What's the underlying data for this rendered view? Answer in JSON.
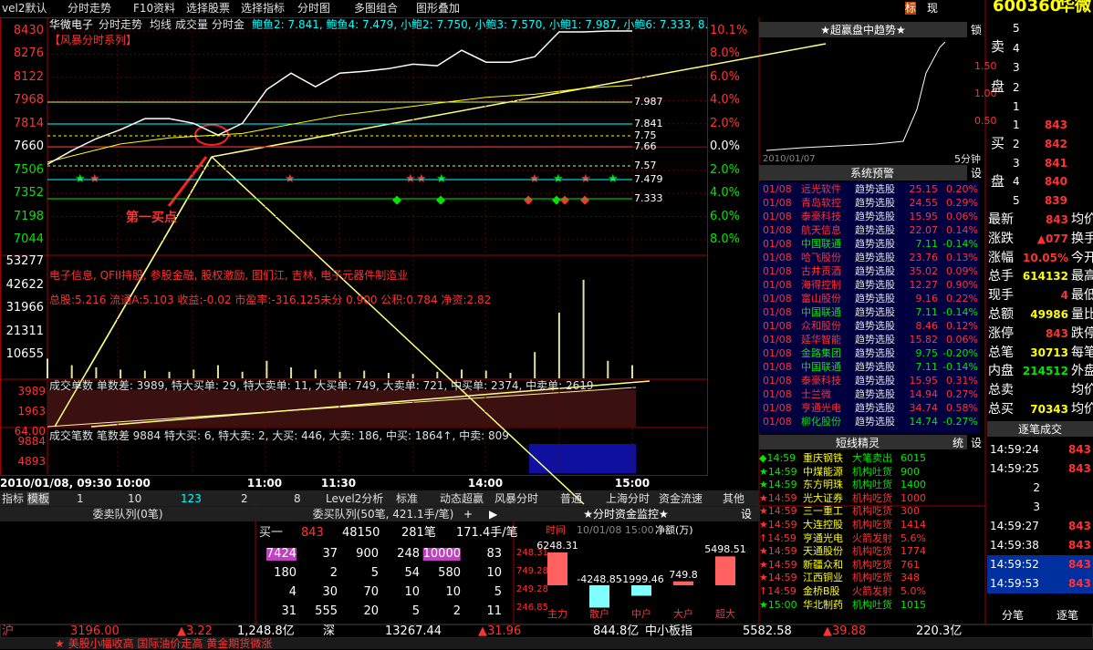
{
  "menu": {
    "tabs": [
      "vel2默认",
      "分时走势",
      "F10资料",
      "选择股票",
      "选择指标",
      "分时图",
      "多图组合",
      "图形叠加"
    ],
    "flags": [
      "标",
      "现"
    ],
    "code": "600360",
    "name": "华微"
  },
  "chart": {
    "header": [
      "华微电子",
      "分时走势",
      "均线",
      "成交量",
      "分时金",
      "鲍鱼2: 7.841, 鲍鱼4: 7.479, 小鲍2: 7.750, 小鲍3: 7.570, 小鲍1: 7.987, 小鲍6: 7.333, 8."
    ],
    "series_label": "【风暴分时系列】",
    "price_ticks": [
      "8430",
      "8276",
      "8122",
      "7968",
      "7814",
      "7660",
      "7506",
      "7352",
      "7198",
      "7044"
    ],
    "pct_ticks": [
      "10.1%",
      "8.0%",
      "6.0%",
      "4.0%",
      "2.0%",
      "0.0%",
      "2.0%",
      "4.0%",
      "6.0%",
      "8.0%"
    ],
    "levels": [
      {
        "label": "7.987",
        "color": "#c8ff64"
      },
      {
        "label": "7.841",
        "color": "#00ffff"
      },
      {
        "label": "7.75",
        "color": "#ffff00"
      },
      {
        "label": "7.66",
        "color": "#ff3232"
      },
      {
        "label": "7.57",
        "color": "#c8ff64"
      },
      {
        "label": "7.479",
        "color": "#00ffff"
      },
      {
        "label": "7.333",
        "color": "#00e600"
      }
    ],
    "annotation": "第一买点",
    "concepts": "电子信息, QFII持股, 参股金融, 股权激励, 图们江, 吉林, 电子元器件制造业",
    "fundamentals": "总股:5.216 流通A:5.103 收益:-0.02 市盈率:-316.125未分 0.900 公积:0.784 净资:2.82",
    "volume_ticks": [
      "53277",
      "42622",
      "31966",
      "21311",
      "10655"
    ],
    "time_labels": [
      "2010/01/08, 09:30 10:00",
      "11:00",
      "11:30",
      "14:00",
      "15:00"
    ],
    "ylim": [
      7044,
      8430
    ],
    "price": [
      7545,
      7636,
      7715,
      7775,
      7848,
      7848,
      7817,
      7739,
      7817,
      8041,
      8150,
      8060,
      8150,
      8162,
      8180,
      8210,
      8199,
      8302,
      8223,
      8223,
      8259,
      8424,
      8424,
      8430,
      8430
    ],
    "price_color": "#ffffff",
    "avg": [
      7560,
      7600,
      7640,
      7680,
      7700,
      7720,
      7730,
      7740,
      7750,
      7780,
      7810,
      7840,
      7870,
      7890,
      7910,
      7930,
      7950,
      7970,
      7990,
      8000,
      8010,
      8030,
      8050,
      8060,
      8070
    ],
    "avg_color": "#ffff00",
    "volume": [
      9000,
      6000,
      5000,
      4000,
      3500,
      3000,
      4000,
      6000,
      3000,
      8000,
      5000,
      4000,
      3000,
      3500,
      2500,
      2000,
      3000,
      4000,
      3500,
      2500,
      12000,
      30000,
      45000,
      8000,
      6000
    ],
    "vol_ylim": [
      0,
      53277
    ]
  },
  "sub1": {
    "title": "成交单数  单数差: 3989, 特大买单: 29, 特大卖单: 11, 大买单: 749, 大卖单: 721, 中买单: 2374, 中卖单: 2619",
    "ticks": [
      "3989",
      "1963",
      "64.00"
    ]
  },
  "sub2": {
    "title": "成交笔数  笔数差  9884  特大买: 6, 特大卖: 2, 大买: 446, 大卖: 186, 中买: 1864↑, 中卖: 809",
    "ticks": [
      "9884",
      "4893"
    ]
  },
  "tabs": [
    "指标",
    "模板",
    "1",
    "10",
    "123",
    "2",
    "8",
    "Level2分析",
    "标准",
    "动态超赢",
    "风暴分时",
    "普通",
    "上海分时",
    "资金流速",
    "其他"
  ],
  "trend": {
    "title": "★超赢盘中趋势★",
    "lock": "锁",
    "date": "2010/01/07",
    "period": "5分钟",
    "ticks": [
      "1.50",
      "1.00",
      "0.50"
    ]
  },
  "alerts": {
    "title": "系统预警",
    "set": "设",
    "rows": [
      [
        "01/08",
        "远光软件",
        "趋势选股",
        "25.15",
        "0.20%"
      ],
      [
        "01/08",
        "青岛软控",
        "趋势选股",
        "24.55",
        "0.29%"
      ],
      [
        "01/08",
        "泰豪科技",
        "趋势选股",
        "15.95",
        "0.06%"
      ],
      [
        "01/08",
        "航天信息",
        "趋势选股",
        "22.07",
        "0.14%"
      ],
      [
        "01/08",
        "中国联通",
        "趋势选股",
        "7.11",
        "-0.14%"
      ],
      [
        "01/08",
        "哈飞股份",
        "趋势选股",
        "23.76",
        "0.13%"
      ],
      [
        "01/08",
        "古井贡酒",
        "趋势选股",
        "35.02",
        "0.09%"
      ],
      [
        "01/08",
        "海得控制",
        "趋势选股",
        "12.27",
        "0.90%"
      ],
      [
        "01/08",
        "富山股份",
        "趋势选股",
        "9.16",
        "0.22%"
      ],
      [
        "01/08",
        "中国联通",
        "趋势选股",
        "7.11",
        "-0.14%"
      ],
      [
        "01/08",
        "众和股份",
        "趋势选股",
        "8.46",
        "0.12%"
      ],
      [
        "01/08",
        "延华智能",
        "趋势选股",
        "15.82",
        "0.06%"
      ],
      [
        "01/08",
        "金路集团",
        "趋势选股",
        "9.75",
        "-0.20%"
      ],
      [
        "01/08",
        "中国联通",
        "趋势选股",
        "7.11",
        "-0.14%"
      ],
      [
        "01/08",
        "泰豪科技",
        "趋势选股",
        "15.95",
        "0.31%"
      ],
      [
        "01/08",
        "士兰微",
        "趋势选股",
        "14.94",
        "0.27%"
      ],
      [
        "01/08",
        "亨通光电",
        "趋势选股",
        "34.74",
        "0.58%"
      ],
      [
        "01/08",
        "柳化股份",
        "趋势选股",
        "14.74",
        "-0.27%"
      ]
    ]
  },
  "sprite": {
    "title": "短线精灵",
    "tabs": [
      "统",
      "设"
    ],
    "rows": [
      [
        "◆14:59",
        "重庆钢铁",
        "大笔卖出",
        "6015"
      ],
      [
        "★14:59",
        "中煤能源",
        "机构吐货",
        "900"
      ],
      [
        "★14:59",
        "东方明珠",
        "机构吐货",
        "1400"
      ],
      [
        "★14:59",
        "光大证券",
        "机构吃货",
        "1000"
      ],
      [
        "★14:59",
        "三一重工",
        "机构吃货",
        "300"
      ],
      [
        "★14:59",
        "大连控股",
        "机构吃货",
        "1414"
      ],
      [
        "↑14:59",
        "亨通光电",
        "火箭发射",
        "5.6%"
      ],
      [
        "★14:59",
        "天通股份",
        "机构吃货",
        "1774"
      ],
      [
        "★14:59",
        "新疆众和",
        "机构吃货",
        "761"
      ],
      [
        "★14:59",
        "江西铜业",
        "机构吃货",
        "348"
      ],
      [
        "↑14:59",
        "金桥B股",
        "火箭发射",
        "5.0%"
      ],
      [
        "★15:00",
        "华北制药",
        "机构吐货",
        "1015"
      ]
    ]
  },
  "quote": {
    "sell_label": [
      "卖",
      "盘"
    ],
    "buy_label": [
      "买",
      "盘"
    ],
    "sell": [
      "5",
      "4",
      "3",
      "2",
      "1"
    ],
    "buy": [
      [
        "1",
        "843"
      ],
      [
        "2",
        "842"
      ],
      [
        "3",
        "841"
      ],
      [
        "4",
        "840"
      ],
      [
        "5",
        "839"
      ]
    ],
    "stats": [
      [
        "最新",
        "843",
        "均价"
      ],
      [
        "涨跌",
        "▲077",
        "换手"
      ],
      [
        "涨幅",
        "10.05%",
        "今开"
      ],
      [
        "总手",
        "614132",
        "最高"
      ],
      [
        "现手",
        "4",
        "最低"
      ],
      [
        "总额",
        "49986",
        "量比"
      ],
      [
        "涨停",
        "843",
        "跌停"
      ],
      [
        "总笔",
        "30713",
        "每笔"
      ],
      [
        "内盘",
        "214512",
        "外盘"
      ],
      [
        "总卖",
        "均价"
      ],
      [
        "总买",
        "70343",
        "均价"
      ]
    ],
    "trades_title": "逐笔成交",
    "trades": [
      [
        "14:59:24",
        "843"
      ],
      [
        "14:59:25",
        "843"
      ],
      [
        "2"
      ],
      [
        "3"
      ],
      [
        "14:59:27",
        "843"
      ],
      [
        "14:59:38",
        "843"
      ],
      [
        "14:59:52",
        "843"
      ],
      [
        "14:59:53",
        "843"
      ]
    ],
    "trade_tabs": [
      "分笔",
      "逐笔"
    ]
  },
  "queue": {
    "sell_title": "委卖队列(0笔)",
    "buy_title": "委买队列(50笔, 421.1手/笔)",
    "controls": [
      "+",
      "▶"
    ],
    "summary": [
      "买一",
      "843",
      "48150",
      "281笔",
      "171.4手/笔"
    ],
    "rows": [
      [
        7424,
        37,
        900,
        248,
        10000,
        83
      ],
      [
        180,
        2,
        5,
        54,
        580,
        10
      ],
      [
        4,
        30,
        70,
        10,
        10,
        5
      ],
      [
        31,
        555,
        20,
        5,
        2,
        11
      ]
    ]
  },
  "fund": {
    "title": "★分时资金监控★",
    "set": "设",
    "head": [
      "时间",
      "10/01/08 15:00",
      "净额(万)"
    ],
    "ticks": [
      "248.31",
      "749.28",
      "249.28",
      "246.85"
    ],
    "categories": [
      "主力",
      "散户",
      "中户",
      "大户",
      "超大"
    ],
    "values": [
      6248.31,
      -4248.85,
      -1999.46,
      749.8,
      5498.51
    ],
    "pos_color": "#ff6060",
    "neg_color": "#80ffff"
  },
  "status": [
    "沪",
    "3196.00",
    "▲3.22",
    "1,248.8亿",
    "深",
    "13267.44",
    "▲31.96",
    "844.8亿",
    "中小板指",
    "5582.58",
    "▲39.88",
    "220.3亿"
  ],
  "ticker": "★ 美股小幅收高 国际油价走高 黄金期货微涨"
}
